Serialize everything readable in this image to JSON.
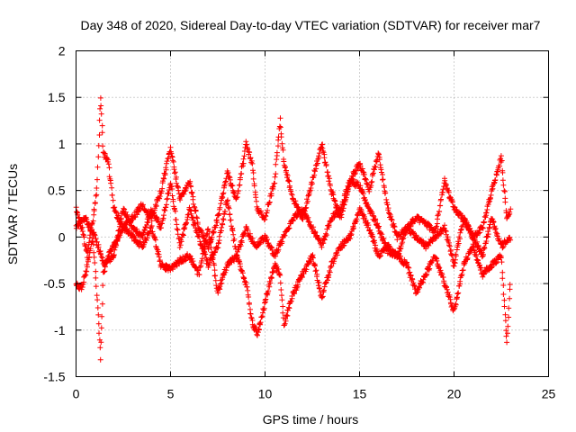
{
  "chart_data": {
    "type": "scatter",
    "title": "Day 348 of 2020, Sidereal Day-to-day VTEC variation (SDTVAR) for receiver mar7",
    "xlabel": "GPS time / hours",
    "ylabel": "SDTVAR / TECUs",
    "xlim": [
      0,
      25
    ],
    "ylim": [
      -1.5,
      2
    ],
    "xticks": [
      0,
      5,
      10,
      15,
      20,
      25
    ],
    "xtick_labels": [
      "0",
      "5",
      "10",
      "15",
      "20",
      "25"
    ],
    "yticks": [
      -1.5,
      -1,
      -0.5,
      0,
      0.5,
      1,
      1.5,
      2
    ],
    "ytick_labels": [
      "-1.5",
      "-1",
      "-0.5",
      "0",
      "0.5",
      "1",
      "1.5",
      "2"
    ],
    "grid": true,
    "marker": "+",
    "series": [
      {
        "name": "SDTVAR",
        "color": "#ff0000",
        "x_range": [
          0,
          23
        ],
        "traces": [
          {
            "x": [
              0.0,
              0.3,
              0.6,
              0.9,
              1.1,
              1.3,
              1.45,
              1.7,
              2.0,
              2.5,
              3.0,
              3.5,
              4.0,
              4.5,
              5.0,
              5.5,
              6.0,
              6.5,
              7.0,
              7.5,
              8.0,
              8.5,
              9.0,
              9.3,
              9.6,
              10.0,
              10.5,
              10.8,
              11.0,
              11.5,
              12.0,
              12.5,
              13.0,
              13.5,
              14.0,
              14.5,
              15.0,
              15.5,
              16.0,
              16.5,
              17.0,
              17.5,
              18.0,
              18.5,
              19.0,
              19.5,
              20.0,
              20.5,
              21.0,
              21.5,
              22.0,
              22.5,
              22.8,
              23.0
            ],
            "y": [
              0.3,
              0.1,
              -0.2,
              0.2,
              0.5,
              1.5,
              0.9,
              0.8,
              0.3,
              0.1,
              0.2,
              0.35,
              0.2,
              0.5,
              0.95,
              0.4,
              0.6,
              0.1,
              -0.1,
              0.2,
              0.7,
              0.4,
              1.0,
              0.8,
              0.3,
              0.2,
              0.6,
              1.25,
              0.8,
              0.4,
              0.2,
              0.6,
              1.0,
              0.5,
              0.2,
              0.6,
              0.8,
              0.5,
              0.9,
              0.3,
              0.0,
              0.1,
              0.2,
              0.15,
              0.05,
              0.6,
              0.3,
              0.2,
              0.0,
              0.1,
              0.5,
              0.85,
              0.2,
              0.3
            ]
          },
          {
            "x": [
              0.0,
              0.3,
              0.6,
              0.9,
              1.1,
              1.3,
              1.45,
              1.7,
              2.0,
              2.5,
              3.0,
              3.5,
              4.0,
              4.5,
              5.0,
              5.5,
              6.0,
              6.5,
              7.0,
              7.5,
              8.0,
              8.5,
              9.0,
              9.3,
              9.6,
              10.0,
              10.5,
              10.8,
              11.0,
              11.5,
              12.0,
              12.5,
              13.0,
              13.5,
              14.0,
              14.5,
              15.0,
              15.5,
              16.0,
              16.5,
              17.0,
              17.5,
              18.0,
              18.5,
              19.0,
              19.5,
              20.0,
              20.5,
              21.0,
              21.5,
              22.0,
              22.5,
              22.8,
              23.0
            ],
            "y": [
              -0.5,
              -0.55,
              -0.3,
              0.0,
              -0.6,
              -1.3,
              -0.4,
              -0.2,
              -0.1,
              0.1,
              0.0,
              -0.1,
              0.1,
              -0.3,
              -0.35,
              -0.25,
              -0.2,
              -0.4,
              0.1,
              -0.6,
              -0.3,
              -0.2,
              -0.5,
              -0.9,
              -1.05,
              -0.7,
              -0.3,
              -0.4,
              -0.95,
              -0.6,
              -0.4,
              -0.2,
              -0.65,
              -0.3,
              -0.1,
              0.0,
              0.3,
              0.1,
              -0.2,
              -0.1,
              -0.2,
              -0.3,
              -0.6,
              -0.4,
              -0.2,
              -0.5,
              -0.8,
              -0.3,
              -0.1,
              -0.4,
              -0.3,
              -0.2,
              -1.15,
              -0.4
            ]
          },
          {
            "x": [
              0.0,
              0.5,
              1.0,
              1.5,
              2.0,
              2.5,
              3.0,
              3.5,
              4.0,
              4.5,
              5.0,
              5.5,
              6.0,
              6.5,
              7.0,
              7.5,
              8.0,
              8.5,
              9.0,
              9.5,
              10.0,
              10.5,
              11.0,
              11.5,
              12.0,
              12.5,
              13.0,
              13.5,
              14.0,
              14.5,
              15.0,
              15.5,
              16.0,
              16.5,
              17.0,
              17.5,
              18.0,
              18.5,
              19.0,
              19.5,
              20.0,
              20.5,
              21.0,
              21.5,
              22.0,
              22.5,
              23.0
            ],
            "y": [
              0.1,
              0.2,
              0.0,
              -0.3,
              -0.2,
              0.3,
              0.1,
              0.0,
              0.3,
              0.1,
              0.6,
              -0.1,
              0.3,
              0.0,
              -0.3,
              -0.1,
              0.4,
              -0.2,
              0.1,
              -0.1,
              0.0,
              -0.2,
              0.0,
              0.2,
              0.3,
              0.1,
              -0.1,
              0.2,
              0.3,
              0.6,
              0.55,
              0.3,
              0.1,
              -0.15,
              -0.2,
              0.1,
              0.0,
              -0.1,
              0.0,
              0.1,
              -0.3,
              0.2,
              0.0,
              -0.2,
              0.2,
              -0.1,
              0.0
            ]
          }
        ]
      }
    ]
  }
}
